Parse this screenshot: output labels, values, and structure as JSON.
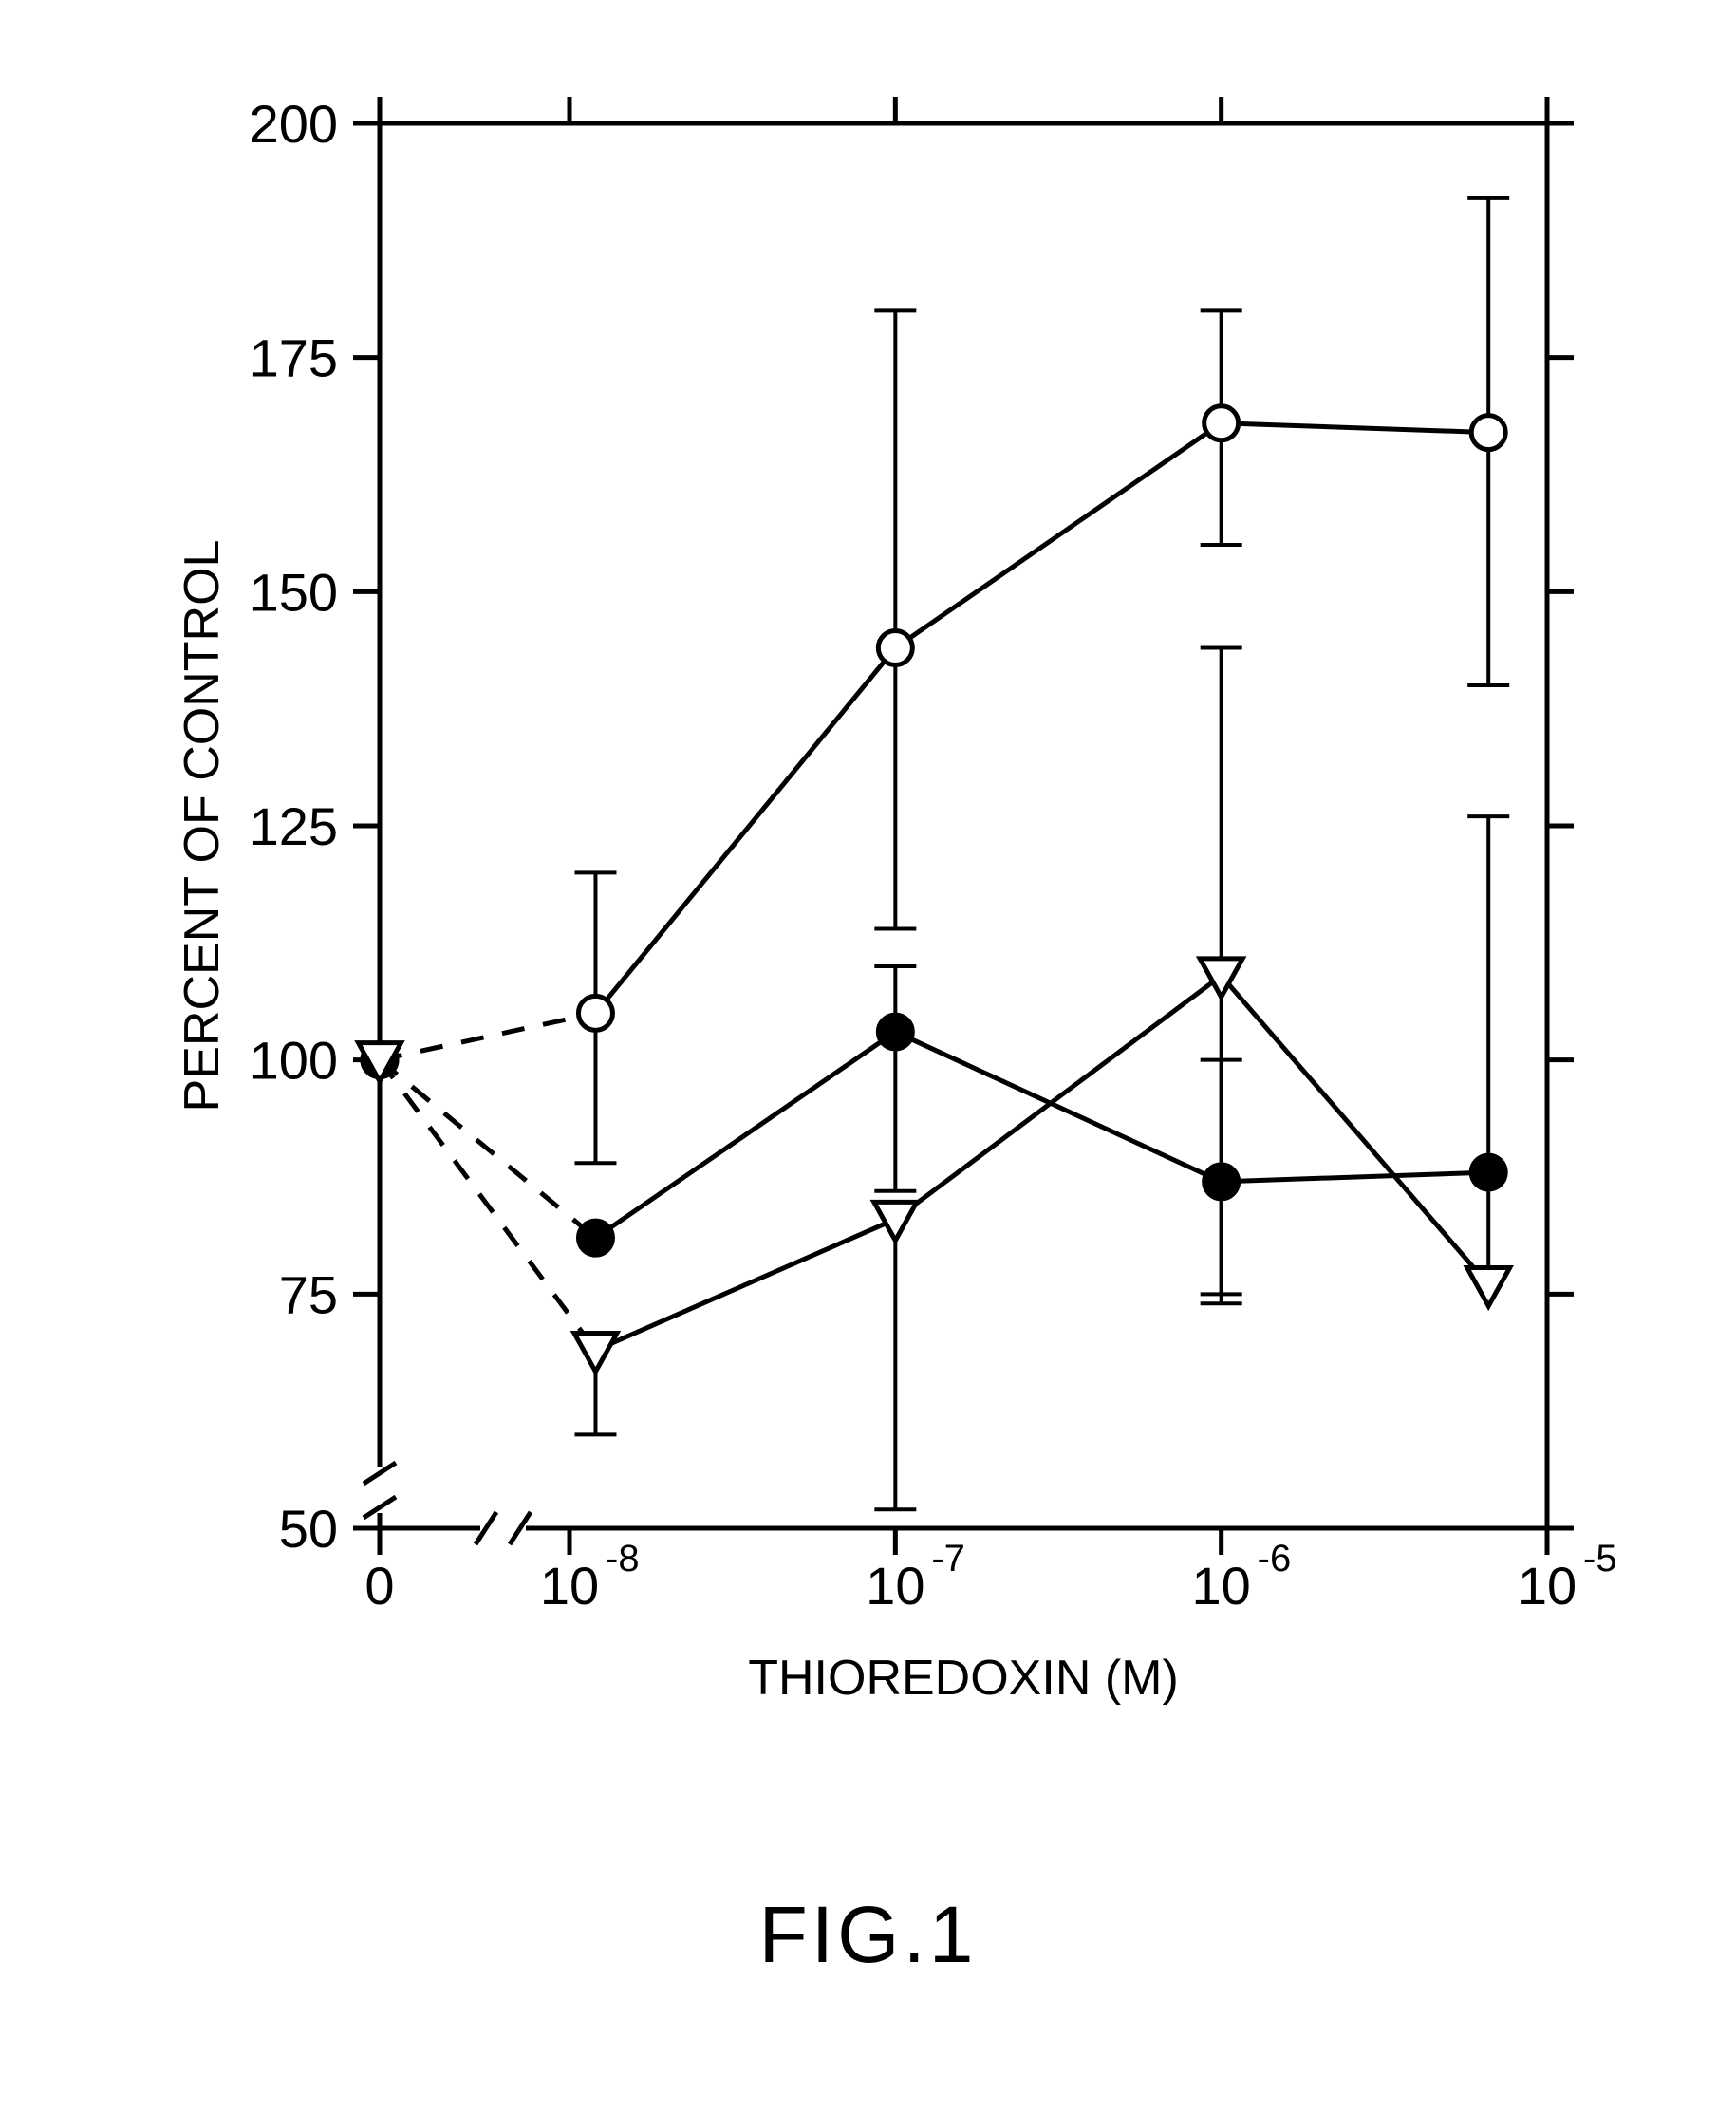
{
  "figure": {
    "title": "FIG.1",
    "title_fontsize": 84,
    "background_color": "#ffffff",
    "line_color": "#000000",
    "axis_stroke_width": 5,
    "series_stroke_width": 5,
    "error_stroke_width": 4,
    "marker_radius": 18,
    "y": {
      "label": "PERCENT OF CONTROL",
      "label_fontsize": 52,
      "lim": [
        50,
        200
      ],
      "tick_step": 25,
      "tick_labels": [
        "50",
        "75",
        "100",
        "125",
        "150",
        "175",
        "200"
      ],
      "tick_fontsize": 56
    },
    "x": {
      "label": "THIOREDOXIN (M)",
      "label_fontsize": 52,
      "break_after_zero": true,
      "positions": [
        0,
        1,
        2,
        3,
        4
      ],
      "tick_labels_plain": [
        "0",
        "10",
        "10",
        "10",
        "10"
      ],
      "tick_exponents": [
        "",
        "-8",
        "-7",
        "-6",
        "-5"
      ],
      "tick_fontsize": 56,
      "exp_fontsize": 40
    },
    "series": [
      {
        "id": "open_circle",
        "marker": "circle",
        "fill": "#ffffff",
        "stroke": "#000000",
        "dash_first_segment": true,
        "points": [
          {
            "x": 0,
            "y": 100,
            "err_lo": 0,
            "err_hi": 0
          },
          {
            "x": 1.08,
            "y": 105,
            "err_lo": 16,
            "err_hi": 15
          },
          {
            "x": 2.0,
            "y": 144,
            "err_lo": 30,
            "err_hi": 36
          },
          {
            "x": 3.0,
            "y": 168,
            "err_lo": 13,
            "err_hi": 12
          },
          {
            "x": 3.82,
            "y": 167,
            "err_lo": 27,
            "err_hi": 25
          }
        ]
      },
      {
        "id": "filled_circle",
        "marker": "circle",
        "fill": "#000000",
        "stroke": "#000000",
        "dash_first_segment": true,
        "points": [
          {
            "x": 0,
            "y": 100,
            "err_lo": 0,
            "err_hi": 0
          },
          {
            "x": 1.08,
            "y": 81,
            "err_lo": 0,
            "err_hi": 0
          },
          {
            "x": 2.0,
            "y": 103,
            "err_lo": 17,
            "err_hi": 7
          },
          {
            "x": 3.0,
            "y": 87,
            "err_lo": 12,
            "err_hi": 13
          },
          {
            "x": 3.82,
            "y": 88,
            "err_lo": 0,
            "err_hi": 0
          }
        ]
      },
      {
        "id": "open_triangle",
        "marker": "triangle-down",
        "fill": "#ffffff",
        "stroke": "#000000",
        "dash_first_segment": true,
        "points": [
          {
            "x": 0,
            "y": 100,
            "err_lo": 0,
            "err_hi": 0
          },
          {
            "x": 1.08,
            "y": 69,
            "err_lo": 9,
            "err_hi": 0
          },
          {
            "x": 2.0,
            "y": 83,
            "err_lo": 31,
            "err_hi": 0
          },
          {
            "x": 3.0,
            "y": 109,
            "err_lo": 35,
            "err_hi": 35
          },
          {
            "x": 3.82,
            "y": 76,
            "err_lo": 0,
            "err_hi": 50
          }
        ]
      }
    ]
  }
}
